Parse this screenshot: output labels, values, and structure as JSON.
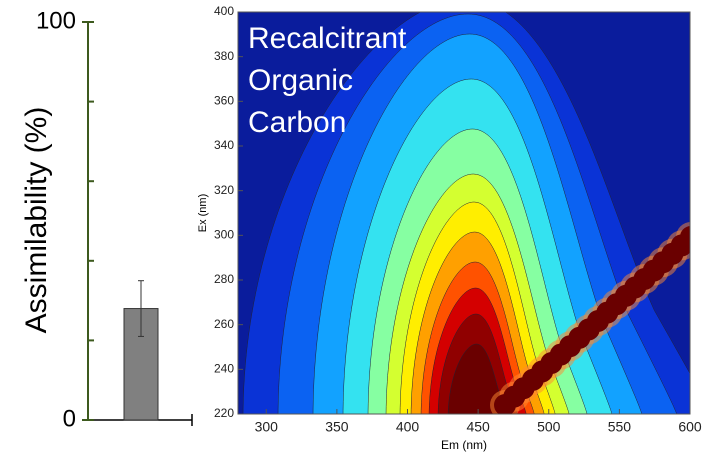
{
  "chart_data": [
    {
      "type": "bar",
      "ylabel": "Assimilability (%)",
      "categories": [
        null
      ],
      "values": [
        28
      ],
      "errors": [
        7
      ],
      "color": "#808080",
      "ylim": [
        0,
        100
      ],
      "yticks": [
        0,
        100
      ],
      "minor_yticks": [
        20,
        40,
        60,
        80
      ],
      "axis_color": "#3d5a1e"
    },
    {
      "type": "contour",
      "annotation": [
        "Recalcitrant",
        "Organic",
        "Carbon"
      ],
      "xlabel": "Em (nm)",
      "ylabel": "Ex (nm)",
      "xlim": [
        280,
        600
      ],
      "ylim": [
        220,
        400
      ],
      "xticks": [
        300,
        350,
        400,
        450,
        500,
        550,
        600
      ],
      "yticks": [
        220,
        240,
        260,
        280,
        300,
        320,
        340,
        360,
        380,
        400
      ]
    }
  ]
}
